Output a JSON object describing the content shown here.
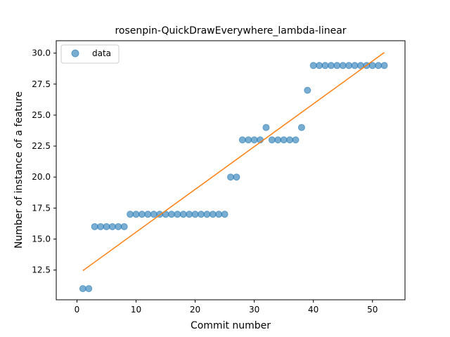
{
  "chart_data": {
    "type": "scatter",
    "title": "rosenpin-QuickDrawEverywhere_lambda-linear",
    "xlabel": "Commit number",
    "ylabel": "Number of instance of a feature",
    "xlim": [
      -3.5,
      55.5
    ],
    "ylim": [
      10.1,
      31.0
    ],
    "xticks": [
      0,
      10,
      20,
      30,
      40,
      50
    ],
    "yticks": [
      12.5,
      15.0,
      17.5,
      20.0,
      22.5,
      25.0,
      27.5,
      30.0
    ],
    "grid": false,
    "legend_position": "top-left",
    "series": [
      {
        "name": "data",
        "kind": "scatter",
        "color": "#1f77b4",
        "x": [
          1,
          2,
          3,
          4,
          5,
          6,
          7,
          8,
          9,
          10,
          11,
          12,
          13,
          14,
          15,
          16,
          17,
          18,
          19,
          20,
          21,
          22,
          23,
          24,
          25,
          26,
          27,
          28,
          29,
          30,
          31,
          32,
          33,
          34,
          35,
          36,
          37,
          38,
          39,
          40,
          41,
          42,
          43,
          44,
          45,
          46,
          47,
          48,
          49,
          50,
          51,
          52
        ],
        "y": [
          11,
          11,
          16,
          16,
          16,
          16,
          16,
          16,
          17,
          17,
          17,
          17,
          17,
          17,
          17,
          17,
          17,
          17,
          17,
          17,
          17,
          17,
          17,
          17,
          17,
          20,
          20,
          23,
          23,
          23,
          23,
          24,
          23,
          23,
          23,
          23,
          23,
          24,
          27,
          29,
          29,
          29,
          29,
          29,
          29,
          29,
          29,
          29,
          29,
          29,
          29,
          29
        ]
      },
      {
        "kind": "line",
        "color": "#ff7f0e",
        "x": [
          1,
          52
        ],
        "y": [
          12.45,
          30.05
        ]
      }
    ]
  }
}
